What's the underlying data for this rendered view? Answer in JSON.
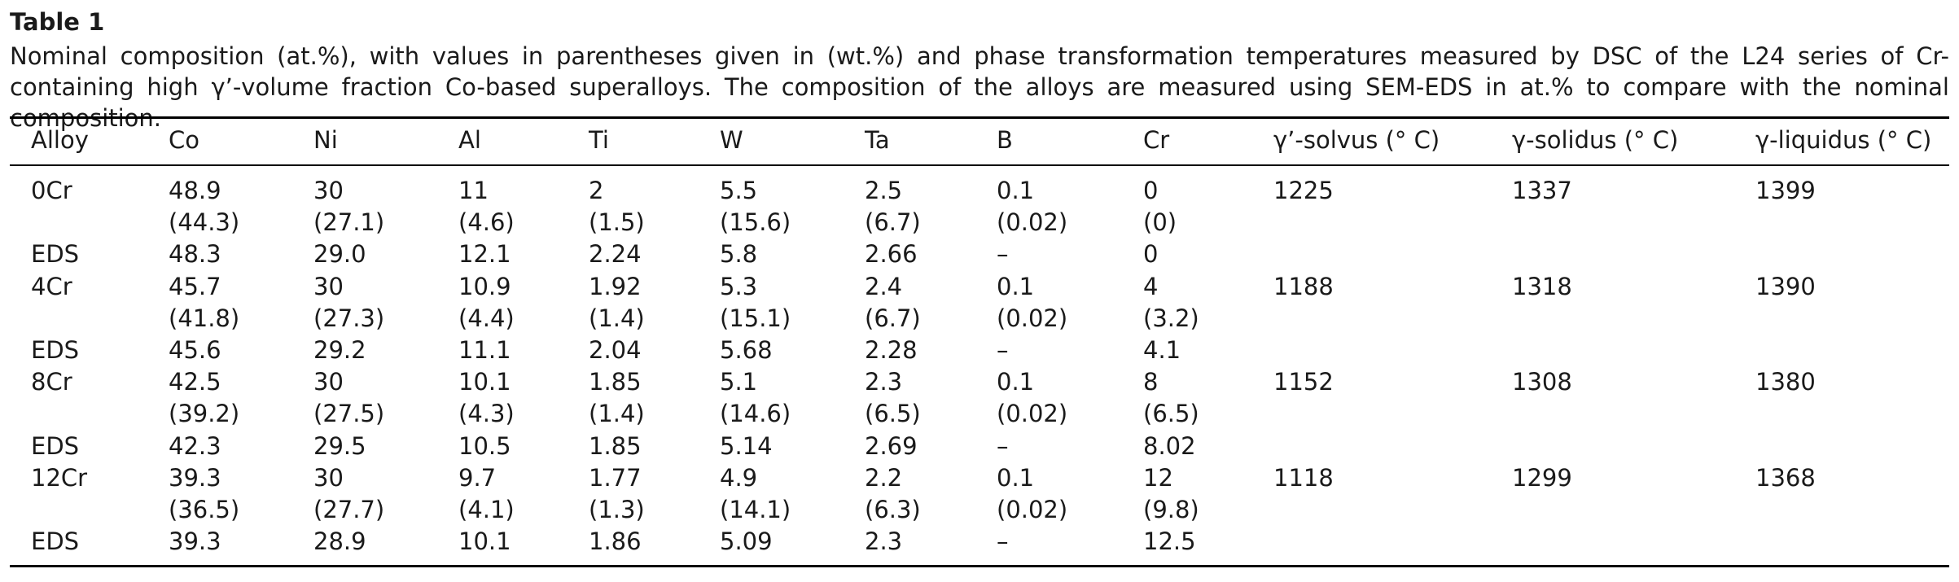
{
  "caption": {
    "label": "Table 1",
    "text": "Nominal composition (at.%), with values in parentheses given in (wt.%) and phase transformation temperatures measured by DSC of the L24 series of Cr-containing high γ’-volume fraction Co-based superalloys. The composition of the alloys are measured using SEM-EDS in at.% to compare with the nominal composition."
  },
  "table": {
    "headers": [
      "Alloy",
      "Co",
      "Ni",
      "Al",
      "Ti",
      "W",
      "Ta",
      "B",
      "Cr",
      "γ’-solvus (° C)",
      "γ-solidus (° C)",
      "γ-liquidus (° C)"
    ],
    "rows": [
      [
        "0Cr",
        "48.9",
        "30",
        "11",
        "2",
        "5.5",
        "2.5",
        "0.1",
        "0",
        "1225",
        "1337",
        "1399"
      ],
      [
        "",
        "(44.3)",
        "(27.1)",
        "(4.6)",
        "(1.5)",
        "(15.6)",
        "(6.7)",
        "(0.02)",
        "(0)",
        "",
        "",
        ""
      ],
      [
        "EDS",
        "48.3",
        "29.0",
        "12.1",
        "2.24",
        "5.8",
        "2.66",
        "–",
        "0",
        "",
        "",
        ""
      ],
      [
        "4Cr",
        "45.7",
        "30",
        "10.9",
        "1.92",
        "5.3",
        "2.4",
        "0.1",
        "4",
        "1188",
        "1318",
        "1390"
      ],
      [
        "",
        "(41.8)",
        "(27.3)",
        "(4.4)",
        "(1.4)",
        "(15.1)",
        "(6.7)",
        "(0.02)",
        "(3.2)",
        "",
        "",
        ""
      ],
      [
        "EDS",
        "45.6",
        "29.2",
        "11.1",
        "2.04",
        "5.68",
        "2.28",
        "–",
        "4.1",
        "",
        "",
        ""
      ],
      [
        "8Cr",
        "42.5",
        "30",
        "10.1",
        "1.85",
        "5.1",
        "2.3",
        "0.1",
        "8",
        "1152",
        "1308",
        "1380"
      ],
      [
        "",
        "(39.2)",
        "(27.5)",
        "(4.3)",
        "(1.4)",
        "(14.6)",
        "(6.5)",
        "(0.02)",
        "(6.5)",
        "",
        "",
        ""
      ],
      [
        "EDS",
        "42.3",
        "29.5",
        "10.5",
        "1.85",
        "5.14",
        "2.69",
        "–",
        "8.02",
        "",
        "",
        ""
      ],
      [
        "12Cr",
        "39.3",
        "30",
        "9.7",
        "1.77",
        "4.9",
        "2.2",
        "0.1",
        "12",
        "1118",
        "1299",
        "1368"
      ],
      [
        "",
        "(36.5)",
        "(27.7)",
        "(4.1)",
        "(1.3)",
        "(14.1)",
        "(6.3)",
        "(0.02)",
        "(9.8)",
        "",
        "",
        ""
      ],
      [
        "EDS",
        "39.3",
        "28.9",
        "10.1",
        "1.86",
        "5.09",
        "2.3",
        "–",
        "12.5",
        "",
        "",
        ""
      ]
    ]
  }
}
